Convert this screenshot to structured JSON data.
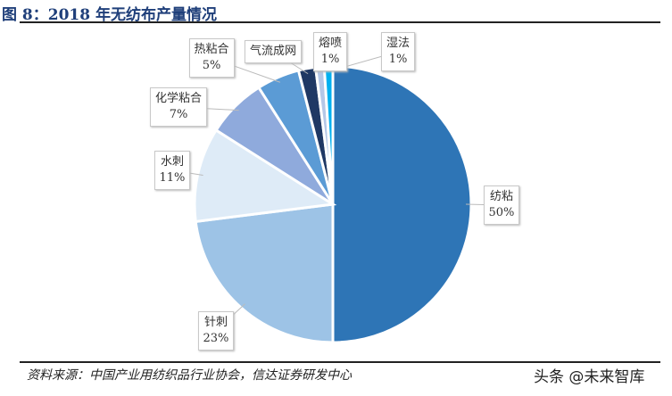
{
  "title": "图 8：2018 年无纺布产量情况",
  "source": "资料来源：中国产业用纺织品行业协会，信达证券研发中心",
  "watermark": "头条 @未来智库",
  "chart_data": {
    "type": "pie",
    "title": "图 8：2018 年无纺布产量情况",
    "start": "12 o'clock, clockwise",
    "slices": [
      {
        "name": "纺粘",
        "value": 50,
        "label": "50%",
        "color": "#2e75b6"
      },
      {
        "name": "针刺",
        "value": 23,
        "label": "23%",
        "color": "#9dc3e6"
      },
      {
        "name": "水刺",
        "value": 11,
        "label": "11%",
        "color": "#deebf7"
      },
      {
        "name": "化学粘合",
        "value": 7,
        "label": "7%",
        "color": "#8faadc"
      },
      {
        "name": "热粘合",
        "value": 5,
        "label": "5%",
        "color": "#5b9bd5"
      },
      {
        "name": "气流成网",
        "value": 2,
        "label": "",
        "color": "#1f3864"
      },
      {
        "name": "熔喷",
        "value": 1,
        "label": "1%",
        "color": "#b4c7e7"
      },
      {
        "name": "湿法",
        "value": 1,
        "label": "1%",
        "color": "#00b0f0"
      }
    ]
  }
}
